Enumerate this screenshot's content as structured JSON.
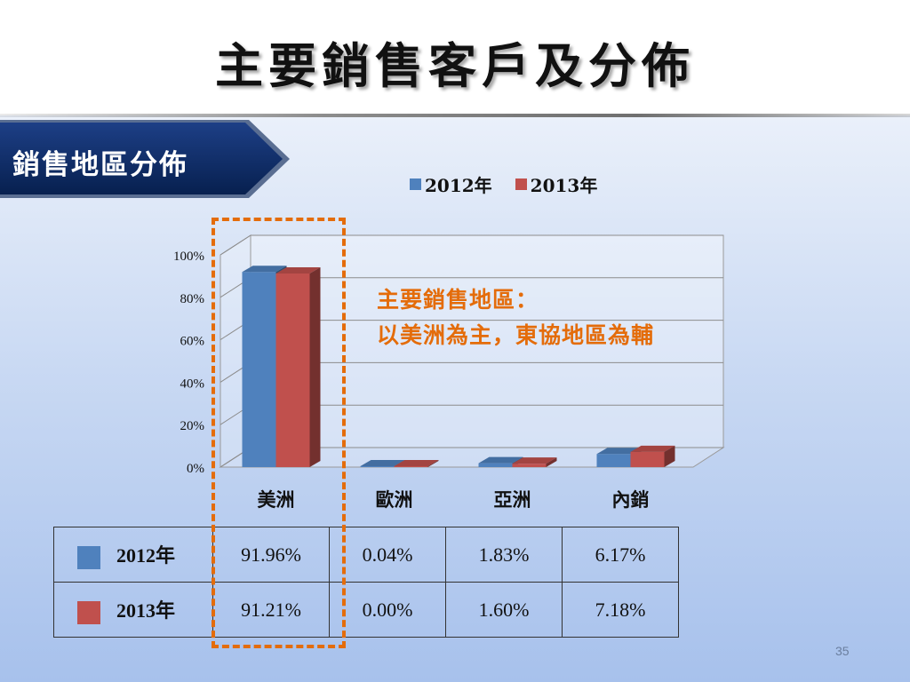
{
  "slide": {
    "title": "主要銷售客戶及分佈",
    "section_label": "銷售地區分佈",
    "annotation_line1": "主要銷售地區：",
    "annotation_line2": "以美洲為主，東協地區為輔",
    "page_number": "35"
  },
  "colors": {
    "series_2012": "#4f81bd",
    "series_2013": "#c0504d",
    "highlight": "#e46c0a",
    "banner": "#0d2a66"
  },
  "chart_data": {
    "type": "bar",
    "categories": [
      "美洲",
      "歐洲",
      "亞洲",
      "內銷"
    ],
    "series": [
      {
        "name": "2012年",
        "values": [
          91.96,
          0.04,
          1.83,
          6.17
        ]
      },
      {
        "name": "2013年",
        "values": [
          91.21,
          0.0,
          1.6,
          7.18
        ]
      }
    ],
    "ylim": [
      0,
      100
    ],
    "yticks": [
      "0%",
      "20%",
      "40%",
      "60%",
      "80%",
      "100%"
    ],
    "legend_position": "top",
    "grid": true
  },
  "table": {
    "rows": [
      {
        "label": "2012年",
        "values": [
          "91.96%",
          "0.04%",
          "1.83%",
          "6.17%"
        ]
      },
      {
        "label": "2013年",
        "values": [
          "91.21%",
          "0.00%",
          "1.60%",
          "7.18%"
        ]
      }
    ]
  }
}
